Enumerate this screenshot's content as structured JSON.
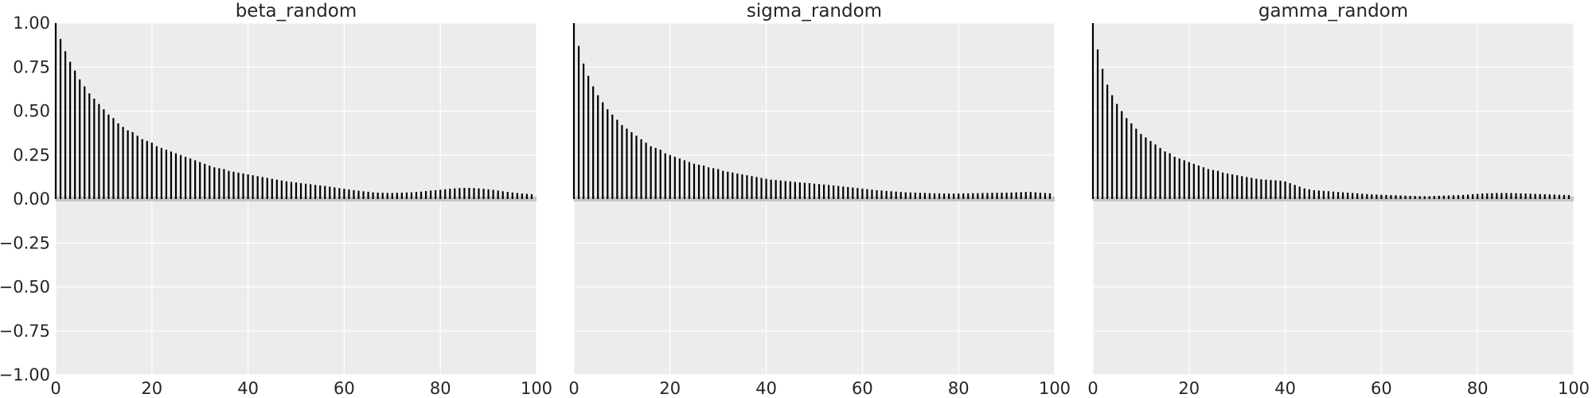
{
  "chart_data": [
    {
      "type": "bar",
      "subtype": "autocorrelation",
      "title": "beta_random",
      "xlabel": "",
      "ylabel": "",
      "xlim": [
        0,
        100
      ],
      "ylim": [
        -1,
        1
      ],
      "xticks": [
        "0",
        "20",
        "40",
        "60",
        "80",
        "100"
      ],
      "yticks": [
        "1.00",
        "0.75",
        "0.50",
        "0.25",
        "0.00",
        "−0.25",
        "−0.50",
        "−0.75",
        "−1.00"
      ],
      "grid": true,
      "x_start": 0,
      "values": [
        1.0,
        0.91,
        0.84,
        0.78,
        0.73,
        0.68,
        0.64,
        0.6,
        0.57,
        0.54,
        0.51,
        0.48,
        0.46,
        0.43,
        0.41,
        0.39,
        0.38,
        0.36,
        0.34,
        0.33,
        0.32,
        0.3,
        0.29,
        0.28,
        0.27,
        0.26,
        0.25,
        0.24,
        0.23,
        0.22,
        0.21,
        0.2,
        0.19,
        0.18,
        0.175,
        0.17,
        0.16,
        0.155,
        0.15,
        0.145,
        0.14,
        0.135,
        0.13,
        0.125,
        0.12,
        0.115,
        0.11,
        0.105,
        0.1,
        0.097,
        0.094,
        0.09,
        0.087,
        0.084,
        0.08,
        0.077,
        0.074,
        0.07,
        0.066,
        0.062,
        0.058,
        0.054,
        0.05,
        0.047,
        0.044,
        0.041,
        0.038,
        0.036,
        0.035,
        0.034,
        0.034,
        0.035,
        0.036,
        0.037,
        0.038,
        0.04,
        0.042,
        0.045,
        0.048,
        0.05,
        0.052,
        0.055,
        0.058,
        0.06,
        0.062,
        0.063,
        0.063,
        0.062,
        0.06,
        0.058,
        0.055,
        0.052,
        0.048,
        0.044,
        0.04,
        0.037,
        0.034,
        0.031,
        0.029,
        0.027
      ]
    },
    {
      "type": "bar",
      "subtype": "autocorrelation",
      "title": "sigma_random",
      "xlabel": "",
      "ylabel": "",
      "xlim": [
        0,
        100
      ],
      "ylim": [
        -1,
        1
      ],
      "xticks": [
        "0",
        "20",
        "40",
        "60",
        "80",
        "100"
      ],
      "yticks": [],
      "grid": true,
      "x_start": 0,
      "values": [
        1.0,
        0.87,
        0.77,
        0.7,
        0.64,
        0.59,
        0.55,
        0.51,
        0.48,
        0.45,
        0.42,
        0.4,
        0.38,
        0.36,
        0.34,
        0.32,
        0.3,
        0.29,
        0.28,
        0.26,
        0.25,
        0.24,
        0.23,
        0.22,
        0.21,
        0.2,
        0.195,
        0.19,
        0.18,
        0.175,
        0.17,
        0.16,
        0.155,
        0.15,
        0.145,
        0.14,
        0.135,
        0.13,
        0.125,
        0.12,
        0.115,
        0.11,
        0.108,
        0.105,
        0.102,
        0.1,
        0.097,
        0.094,
        0.092,
        0.09,
        0.087,
        0.085,
        0.082,
        0.08,
        0.077,
        0.074,
        0.071,
        0.068,
        0.065,
        0.062,
        0.059,
        0.056,
        0.053,
        0.05,
        0.048,
        0.046,
        0.044,
        0.042,
        0.04,
        0.038,
        0.037,
        0.036,
        0.035,
        0.034,
        0.033,
        0.032,
        0.032,
        0.031,
        0.031,
        0.031,
        0.031,
        0.032,
        0.032,
        0.033,
        0.033,
        0.034,
        0.034,
        0.035,
        0.035,
        0.036,
        0.036,
        0.037,
        0.038,
        0.039,
        0.04,
        0.04,
        0.038,
        0.036,
        0.034,
        0.032
      ]
    },
    {
      "type": "bar",
      "subtype": "autocorrelation",
      "title": "gamma_random",
      "xlabel": "",
      "ylabel": "",
      "xlim": [
        0,
        100
      ],
      "ylim": [
        -1,
        1
      ],
      "xticks": [
        "0",
        "20",
        "40",
        "60",
        "80",
        "100"
      ],
      "yticks": [],
      "grid": true,
      "x_start": 0,
      "values": [
        1.0,
        0.85,
        0.74,
        0.65,
        0.59,
        0.54,
        0.5,
        0.46,
        0.43,
        0.4,
        0.37,
        0.35,
        0.33,
        0.31,
        0.29,
        0.27,
        0.26,
        0.24,
        0.23,
        0.22,
        0.21,
        0.2,
        0.19,
        0.18,
        0.17,
        0.165,
        0.16,
        0.15,
        0.145,
        0.14,
        0.135,
        0.13,
        0.125,
        0.12,
        0.115,
        0.112,
        0.11,
        0.108,
        0.106,
        0.104,
        0.1,
        0.09,
        0.08,
        0.07,
        0.06,
        0.055,
        0.05,
        0.048,
        0.046,
        0.044,
        0.042,
        0.04,
        0.038,
        0.036,
        0.034,
        0.032,
        0.03,
        0.028,
        0.026,
        0.025,
        0.024,
        0.023,
        0.022,
        0.021,
        0.02,
        0.019,
        0.018,
        0.017,
        0.016,
        0.016,
        0.016,
        0.017,
        0.018,
        0.019,
        0.02,
        0.021,
        0.022,
        0.023,
        0.025,
        0.027,
        0.029,
        0.031,
        0.032,
        0.033,
        0.034,
        0.034,
        0.034,
        0.034,
        0.033,
        0.032,
        0.031,
        0.03,
        0.029,
        0.028,
        0.027,
        0.026,
        0.025,
        0.024,
        0.023,
        0.022
      ]
    }
  ],
  "colors": {
    "background": "#ffffff",
    "panel": "#ececec",
    "grid": "#ffffff",
    "bar": "#000000",
    "zero_band": "#c4c4c4",
    "text": "#262626"
  }
}
